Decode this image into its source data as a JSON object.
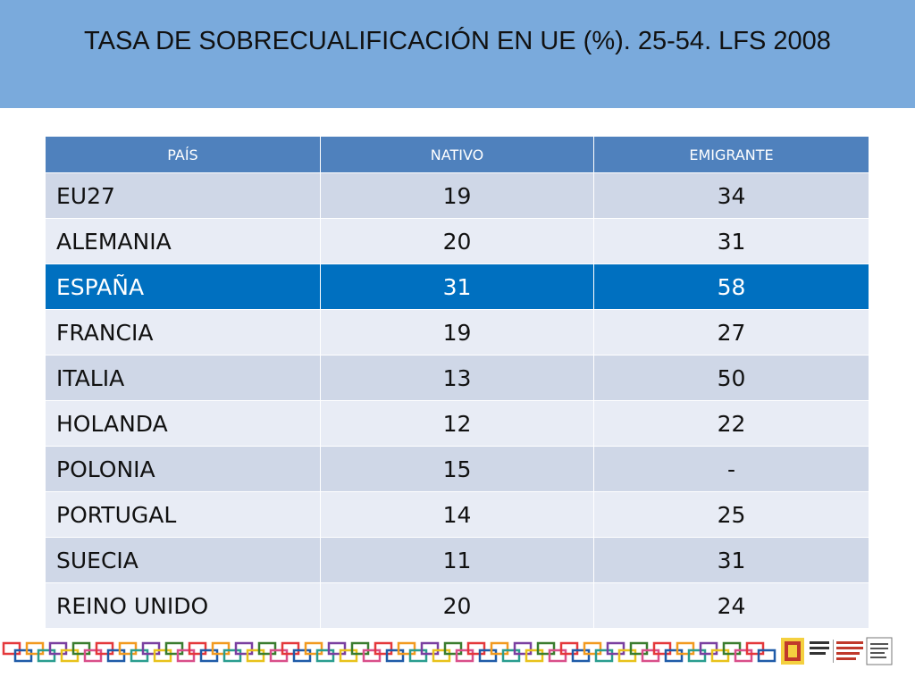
{
  "title": "TASA DE SOBRECUALIFICACIÓN EN UE (%). 25-54. LFS 2008",
  "colors": {
    "header_band": "#7aaadc",
    "table_header": "#4f81bd",
    "highlight": "#0070c0",
    "row_odd": "#cfd7e7",
    "row_even": "#e8ecf5"
  },
  "chart_data": {
    "type": "table",
    "title": "TASA DE SOBRECUALIFICACIÓN EN UE (%). 25-54. LFS 2008",
    "columns": [
      "PAÍS",
      "NATIVO",
      "EMIGRANTE"
    ],
    "rows": [
      [
        "EU27",
        "19",
        "34"
      ],
      [
        "ALEMANIA",
        "20",
        "31"
      ],
      [
        "ESPAÑA",
        "31",
        "58"
      ],
      [
        "FRANCIA",
        "19",
        "27"
      ],
      [
        "ITALIA",
        "13",
        "50"
      ],
      [
        "HOLANDA",
        "12",
        "22"
      ],
      [
        "POLONIA",
        "15",
        "-"
      ],
      [
        "PORTUGAL",
        "14",
        "25"
      ],
      [
        "SUECIA",
        "11",
        "31"
      ],
      [
        "REINO UNIDO",
        "20",
        "24"
      ]
    ],
    "highlighted_row": "ESPAÑA"
  },
  "footer": {
    "chain_colors": [
      "#e4383b",
      "#1f5ba8",
      "#f29a1f",
      "#2a9d8f",
      "#7a3fa0",
      "#e8c21b",
      "#3a7d2e",
      "#d94f8a"
    ],
    "logo_icons": [
      "coat-of-arms-icon",
      "ministry-text-icon",
      "logo-box-icon"
    ]
  }
}
